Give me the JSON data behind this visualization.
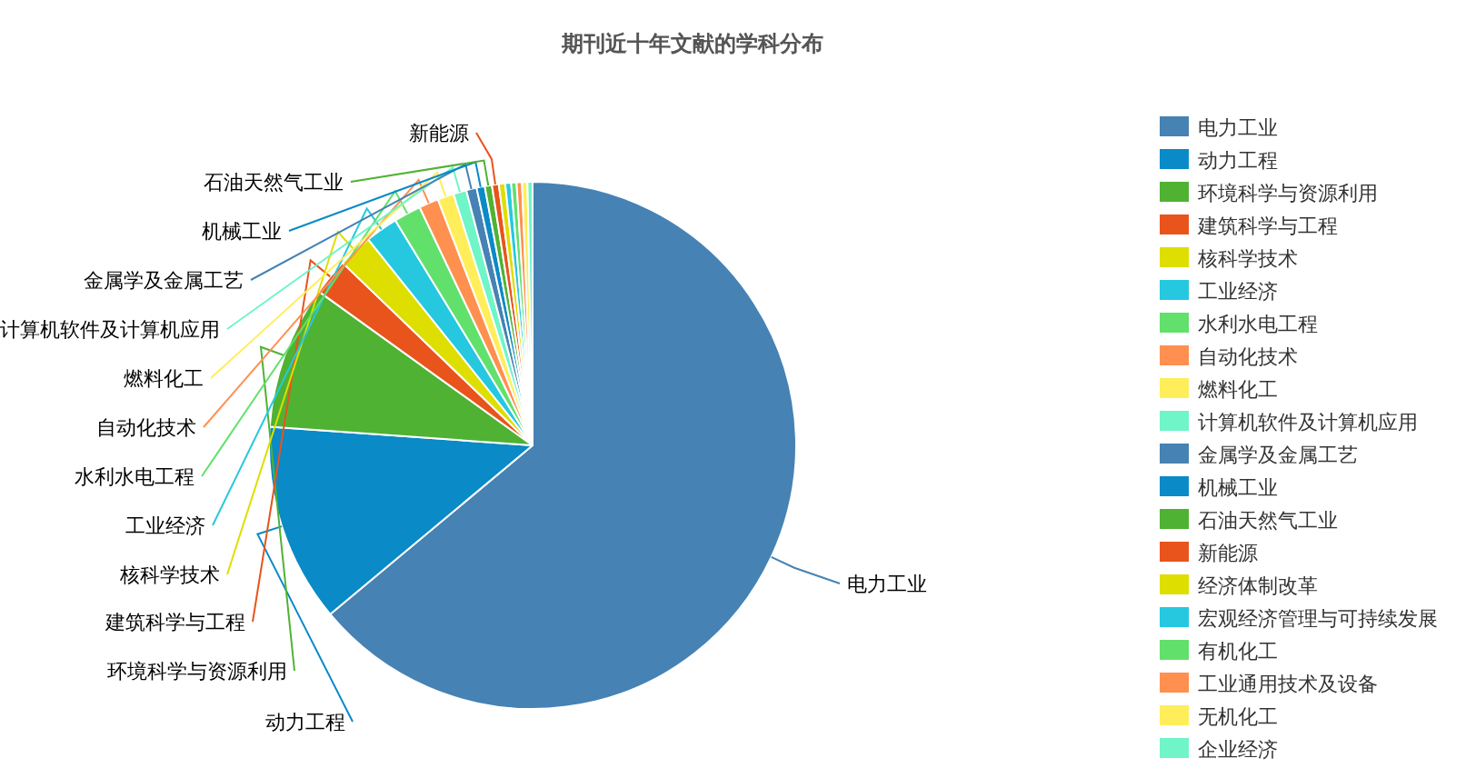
{
  "chart_data": {
    "type": "pie",
    "title": "期刊近十年文献的学科分布",
    "categories": [
      "电力工业",
      "动力工程",
      "环境科学与资源利用",
      "建筑科学与工程",
      "核科学技术",
      "工业经济",
      "水利水电工程",
      "自动化技术",
      "燃料化工",
      "计算机软件及计算机应用",
      "金属学及金属工艺",
      "机械工业",
      "石油天然气工业",
      "新能源",
      "经济体制改革",
      "宏观经济管理与可持续发展",
      "有机化工",
      "工业通用技术及设备",
      "无机化工",
      "企业经济"
    ],
    "values": [
      63.93,
      12.2,
      8.8,
      2.25,
      2.1,
      2.0,
      1.67,
      1.2,
      1.0,
      0.8,
      0.64,
      0.5,
      0.44,
      0.42,
      0.39,
      0.36,
      0.33,
      0.33,
      0.33,
      0.31
    ],
    "colors": [
      "#4682b4",
      "#0a8ac6",
      "#4fb233",
      "#e8541c",
      "#dede00",
      "#26c8e0",
      "#62e06c",
      "#ff9050",
      "#ffee5a",
      "#6ff5c8",
      "#4682b4",
      "#0a8ac6",
      "#4fb233",
      "#e8541c",
      "#dede00",
      "#26c8e0",
      "#62e06c",
      "#ff9050",
      "#ffee5a",
      "#6ff5c8"
    ],
    "legend": "right"
  }
}
